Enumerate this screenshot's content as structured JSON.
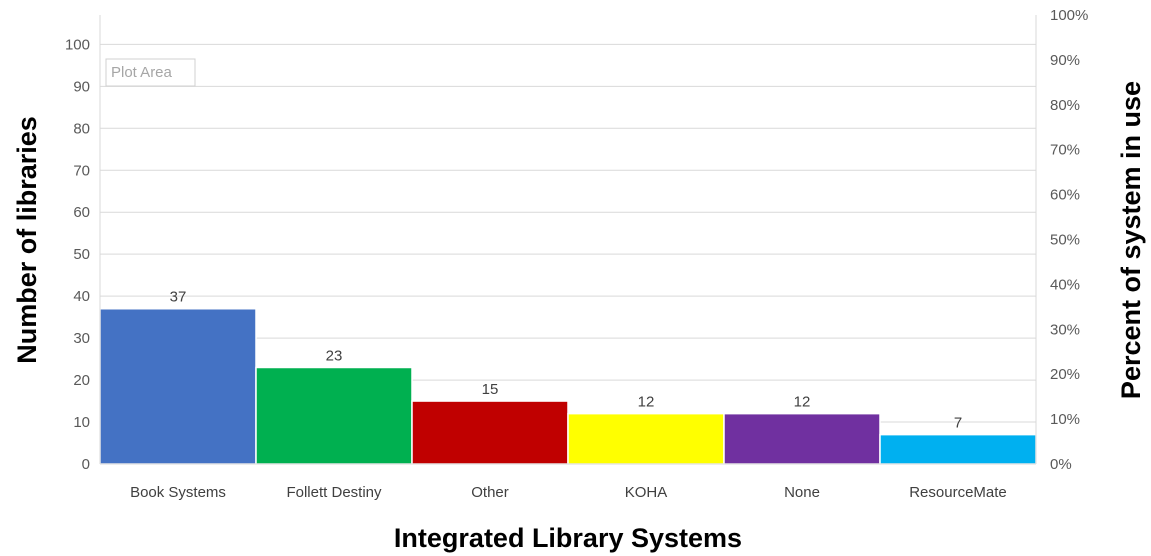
{
  "chart_data": {
    "type": "bar",
    "categories": [
      "Book Systems",
      "Follett Destiny",
      "Other",
      "KOHA",
      "None",
      "ResourceMate"
    ],
    "values": [
      37,
      23,
      15,
      12,
      12,
      7
    ],
    "colors": [
      "#4472c4",
      "#00b050",
      "#c00000",
      "#ffff00",
      "#7030a0",
      "#00b0f0"
    ],
    "xlabel": "Integrated Library Systems",
    "ylabel": "Number of libraries",
    "y2label": "Percent of system in use",
    "ylim": [
      0,
      107
    ],
    "yticks": [
      "0",
      "10",
      "20",
      "30",
      "40",
      "50",
      "60",
      "70",
      "80",
      "90",
      "100"
    ],
    "y2lim": [
      0,
      1
    ],
    "y2ticks": [
      "0%",
      "10%",
      "20%",
      "30%",
      "40%",
      "50%",
      "60%",
      "70%",
      "80%",
      "90%",
      "100%"
    ],
    "grid": true,
    "data_labels": [
      "37",
      "23",
      "15",
      "12",
      "12",
      "7"
    ],
    "plot_area_tag": "Plot Area"
  }
}
